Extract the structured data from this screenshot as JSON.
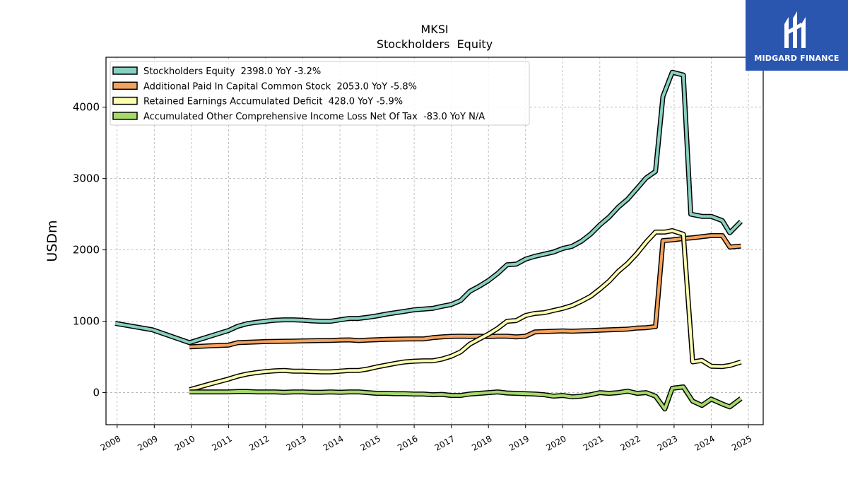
{
  "brand": {
    "name": "MIDGARD FINANCE",
    "colors": {
      "background": "#2b56b0",
      "text": "#ffffff"
    }
  },
  "chart_data": {
    "type": "line",
    "title": "MKSI",
    "subtitle": "Stockholders  Equity",
    "xlabel": "",
    "ylabel": "USDm",
    "xlim": [
      2007.7,
      2025.4
    ],
    "ylim": [
      -450,
      4700
    ],
    "xticks": [
      2008,
      2009,
      2010,
      2011,
      2012,
      2013,
      2014,
      2015,
      2016,
      2017,
      2018,
      2019,
      2020,
      2021,
      2022,
      2023,
      2024,
      2025
    ],
    "xtick_labels": [
      "2008",
      "2009",
      "2010",
      "2011",
      "2012",
      "2013",
      "2014",
      "2015",
      "2016",
      "2017",
      "2018",
      "2019",
      "2020",
      "2021",
      "2022",
      "2023",
      "2024",
      "2025"
    ],
    "yticks": [
      0,
      1000,
      2000,
      3000,
      4000
    ],
    "ytick_labels": [
      "0",
      "1000",
      "2000",
      "3000",
      "4000"
    ],
    "grid": true,
    "legend_position": "top-left",
    "series": [
      {
        "name": "Stockholders Equity  2398.0 YoY -3.2%",
        "color": "#88d0c0",
        "points": [
          [
            2007.95,
            970
          ],
          [
            2008.95,
            880
          ],
          [
            2009.95,
            700
          ],
          [
            2010.5,
            790
          ],
          [
            2011.0,
            870
          ],
          [
            2011.25,
            930
          ],
          [
            2011.5,
            965
          ],
          [
            2011.75,
            985
          ],
          [
            2012.0,
            1000
          ],
          [
            2012.25,
            1015
          ],
          [
            2012.5,
            1020
          ],
          [
            2012.75,
            1020
          ],
          [
            2013.0,
            1015
          ],
          [
            2013.25,
            1005
          ],
          [
            2013.5,
            1000
          ],
          [
            2013.75,
            1000
          ],
          [
            2014.0,
            1020
          ],
          [
            2014.25,
            1040
          ],
          [
            2014.5,
            1040
          ],
          [
            2014.75,
            1055
          ],
          [
            2015.0,
            1075
          ],
          [
            2015.25,
            1100
          ],
          [
            2015.5,
            1120
          ],
          [
            2015.75,
            1140
          ],
          [
            2016.0,
            1160
          ],
          [
            2016.25,
            1170
          ],
          [
            2016.5,
            1180
          ],
          [
            2016.75,
            1210
          ],
          [
            2017.0,
            1235
          ],
          [
            2017.25,
            1290
          ],
          [
            2017.5,
            1420
          ],
          [
            2017.75,
            1490
          ],
          [
            2018.0,
            1570
          ],
          [
            2018.25,
            1670
          ],
          [
            2018.5,
            1790
          ],
          [
            2018.75,
            1800
          ],
          [
            2019.0,
            1870
          ],
          [
            2019.25,
            1910
          ],
          [
            2019.5,
            1940
          ],
          [
            2019.75,
            1970
          ],
          [
            2020.0,
            2020
          ],
          [
            2020.25,
            2050
          ],
          [
            2020.5,
            2120
          ],
          [
            2020.75,
            2220
          ],
          [
            2021.0,
            2350
          ],
          [
            2021.25,
            2460
          ],
          [
            2021.5,
            2600
          ],
          [
            2021.75,
            2710
          ],
          [
            2022.0,
            2860
          ],
          [
            2022.25,
            3010
          ],
          [
            2022.5,
            3100
          ],
          [
            2022.7,
            4150
          ],
          [
            2022.95,
            4490
          ],
          [
            2023.25,
            4450
          ],
          [
            2023.45,
            2500
          ],
          [
            2023.75,
            2470
          ],
          [
            2024.0,
            2470
          ],
          [
            2024.3,
            2410
          ],
          [
            2024.5,
            2240
          ],
          [
            2024.8,
            2398
          ]
        ]
      },
      {
        "name": "Additional Paid In Capital Common Stock  2053.0 YoY -5.8%",
        "color": "#f5a25d",
        "points": [
          [
            2009.95,
            640
          ],
          [
            2010.5,
            655
          ],
          [
            2011.0,
            665
          ],
          [
            2011.25,
            700
          ],
          [
            2011.5,
            705
          ],
          [
            2011.75,
            710
          ],
          [
            2012.0,
            715
          ],
          [
            2012.25,
            718
          ],
          [
            2012.5,
            720
          ],
          [
            2012.75,
            722
          ],
          [
            2013.0,
            725
          ],
          [
            2013.25,
            728
          ],
          [
            2013.5,
            730
          ],
          [
            2013.75,
            732
          ],
          [
            2014.0,
            735
          ],
          [
            2014.25,
            738
          ],
          [
            2014.5,
            730
          ],
          [
            2014.75,
            735
          ],
          [
            2015.0,
            740
          ],
          [
            2015.25,
            745
          ],
          [
            2015.5,
            748
          ],
          [
            2015.75,
            750
          ],
          [
            2016.0,
            752
          ],
          [
            2016.25,
            752
          ],
          [
            2016.5,
            770
          ],
          [
            2016.75,
            780
          ],
          [
            2017.0,
            788
          ],
          [
            2017.25,
            790
          ],
          [
            2017.5,
            788
          ],
          [
            2017.75,
            790
          ],
          [
            2018.0,
            785
          ],
          [
            2018.25,
            790
          ],
          [
            2018.5,
            790
          ],
          [
            2018.75,
            780
          ],
          [
            2019.0,
            790
          ],
          [
            2019.25,
            850
          ],
          [
            2019.5,
            855
          ],
          [
            2019.75,
            860
          ],
          [
            2020.0,
            865
          ],
          [
            2020.25,
            860
          ],
          [
            2020.5,
            865
          ],
          [
            2020.75,
            868
          ],
          [
            2021.0,
            875
          ],
          [
            2021.25,
            880
          ],
          [
            2021.5,
            885
          ],
          [
            2021.75,
            890
          ],
          [
            2022.0,
            905
          ],
          [
            2022.25,
            910
          ],
          [
            2022.5,
            925
          ],
          [
            2022.7,
            2130
          ],
          [
            2022.95,
            2140
          ],
          [
            2023.25,
            2160
          ],
          [
            2023.5,
            2170
          ],
          [
            2023.75,
            2185
          ],
          [
            2024.0,
            2200
          ],
          [
            2024.3,
            2200
          ],
          [
            2024.5,
            2040
          ],
          [
            2024.8,
            2053
          ]
        ]
      },
      {
        "name": "Retained Earnings Accumulated Deficit  428.0 YoY -5.9%",
        "color": "#fdfdb0",
        "points": [
          [
            2009.95,
            40
          ],
          [
            2010.5,
            120
          ],
          [
            2011.0,
            190
          ],
          [
            2011.25,
            230
          ],
          [
            2011.5,
            260
          ],
          [
            2011.75,
            280
          ],
          [
            2012.0,
            295
          ],
          [
            2012.25,
            305
          ],
          [
            2012.5,
            310
          ],
          [
            2012.75,
            300
          ],
          [
            2013.0,
            300
          ],
          [
            2013.25,
            295
          ],
          [
            2013.5,
            290
          ],
          [
            2013.75,
            290
          ],
          [
            2014.0,
            300
          ],
          [
            2014.25,
            310
          ],
          [
            2014.5,
            310
          ],
          [
            2014.75,
            330
          ],
          [
            2015.0,
            360
          ],
          [
            2015.25,
            385
          ],
          [
            2015.5,
            410
          ],
          [
            2015.75,
            430
          ],
          [
            2016.0,
            440
          ],
          [
            2016.25,
            445
          ],
          [
            2016.5,
            445
          ],
          [
            2016.75,
            470
          ],
          [
            2017.0,
            510
          ],
          [
            2017.25,
            570
          ],
          [
            2017.5,
            680
          ],
          [
            2017.75,
            750
          ],
          [
            2018.0,
            820
          ],
          [
            2018.25,
            900
          ],
          [
            2018.5,
            1000
          ],
          [
            2018.75,
            1010
          ],
          [
            2019.0,
            1080
          ],
          [
            2019.25,
            1110
          ],
          [
            2019.5,
            1120
          ],
          [
            2019.75,
            1150
          ],
          [
            2020.0,
            1180
          ],
          [
            2020.25,
            1220
          ],
          [
            2020.5,
            1280
          ],
          [
            2020.75,
            1350
          ],
          [
            2021.0,
            1450
          ],
          [
            2021.25,
            1560
          ],
          [
            2021.5,
            1700
          ],
          [
            2021.75,
            1810
          ],
          [
            2022.0,
            1950
          ],
          [
            2022.25,
            2110
          ],
          [
            2022.5,
            2250
          ],
          [
            2022.75,
            2250
          ],
          [
            2022.95,
            2270
          ],
          [
            2023.25,
            2220
          ],
          [
            2023.5,
            430
          ],
          [
            2023.75,
            450
          ],
          [
            2024.0,
            370
          ],
          [
            2024.3,
            365
          ],
          [
            2024.5,
            380
          ],
          [
            2024.8,
            428
          ]
        ]
      },
      {
        "name": "Accumulated Other Comprehensive Income Loss Net Of Tax  -83.0 YoY N/A",
        "color": "#a6d96a",
        "points": [
          [
            2009.95,
            10
          ],
          [
            2010.5,
            10
          ],
          [
            2011.0,
            10
          ],
          [
            2011.25,
            15
          ],
          [
            2011.5,
            15
          ],
          [
            2011.75,
            10
          ],
          [
            2012.0,
            10
          ],
          [
            2012.25,
            10
          ],
          [
            2012.5,
            5
          ],
          [
            2012.75,
            10
          ],
          [
            2013.0,
            10
          ],
          [
            2013.25,
            5
          ],
          [
            2013.5,
            5
          ],
          [
            2013.75,
            10
          ],
          [
            2014.0,
            5
          ],
          [
            2014.25,
            10
          ],
          [
            2014.5,
            10
          ],
          [
            2014.75,
            0
          ],
          [
            2015.0,
            -10
          ],
          [
            2015.25,
            -10
          ],
          [
            2015.5,
            -15
          ],
          [
            2015.75,
            -15
          ],
          [
            2016.0,
            -20
          ],
          [
            2016.25,
            -20
          ],
          [
            2016.5,
            -30
          ],
          [
            2016.75,
            -25
          ],
          [
            2017.0,
            -40
          ],
          [
            2017.25,
            -40
          ],
          [
            2017.5,
            -20
          ],
          [
            2017.75,
            -10
          ],
          [
            2018.0,
            0
          ],
          [
            2018.25,
            10
          ],
          [
            2018.5,
            -5
          ],
          [
            2018.75,
            -10
          ],
          [
            2019.0,
            -15
          ],
          [
            2019.25,
            -20
          ],
          [
            2019.5,
            -30
          ],
          [
            2019.75,
            -50
          ],
          [
            2020.0,
            -40
          ],
          [
            2020.25,
            -60
          ],
          [
            2020.5,
            -50
          ],
          [
            2020.75,
            -30
          ],
          [
            2021.0,
            0
          ],
          [
            2021.25,
            -10
          ],
          [
            2021.5,
            0
          ],
          [
            2021.75,
            20
          ],
          [
            2022.0,
            -10
          ],
          [
            2022.25,
            0
          ],
          [
            2022.5,
            -50
          ],
          [
            2022.75,
            -230
          ],
          [
            2022.95,
            60
          ],
          [
            2023.25,
            80
          ],
          [
            2023.5,
            -120
          ],
          [
            2023.75,
            -180
          ],
          [
            2024.0,
            -90
          ],
          [
            2024.3,
            -160
          ],
          [
            2024.5,
            -200
          ],
          [
            2024.8,
            -83
          ]
        ]
      }
    ]
  }
}
